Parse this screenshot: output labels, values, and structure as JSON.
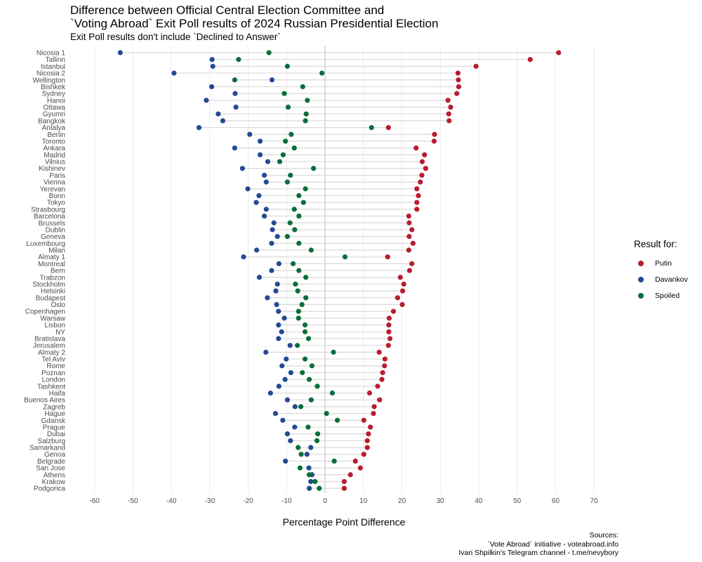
{
  "title_lines": [
    "Difference between Official Central Election Committee and",
    "`Voting Abroad` Exit Poll results of 2024 Russian Presidential Election"
  ],
  "subtitle": "Exit Poll results don't include `Declined to Answer`",
  "legend": {
    "title": "Result for:",
    "items": [
      {
        "name": "Putin",
        "color": "#b81d2e"
      },
      {
        "name": "Davankov",
        "color": "#244a94"
      },
      {
        "name": "Spoiled",
        "color": "#0b6e3a"
      }
    ]
  },
  "sources": [
    "Sources:",
    "`Vote Abroad` initiative - voteabroad.info",
    "Ivan Shpilkin's Telegram channel - t.me/nevybory"
  ],
  "chart_data": {
    "type": "scatter",
    "xlabel": "Percentage Point Difference",
    "xlim": [
      -60,
      70
    ],
    "xticks": [
      -60,
      -50,
      -40,
      -30,
      -20,
      -10,
      0,
      10,
      20,
      30,
      40,
      50,
      60,
      70
    ],
    "series_names": [
      "Putin",
      "Davankov",
      "Spoiled"
    ],
    "rows": [
      {
        "city": "Nicosia 1",
        "putin": 60.8,
        "davankov": -53.3,
        "spoiled": -14.6
      },
      {
        "city": "Tallinn",
        "putin": 53.4,
        "davankov": -29.4,
        "spoiled": -22.5
      },
      {
        "city": "Istanbul",
        "putin": 39.3,
        "davankov": -29.2,
        "spoiled": -9.8
      },
      {
        "city": "Nicosia 2",
        "putin": 34.6,
        "davankov": -39.3,
        "spoiled": -0.8
      },
      {
        "city": "Wellington",
        "putin": 34.7,
        "davankov": -13.8,
        "spoiled": -23.5
      },
      {
        "city": "Bishkek",
        "putin": 34.8,
        "davankov": -29.5,
        "spoiled": -5.8
      },
      {
        "city": "Sydney",
        "putin": 34.3,
        "davankov": -23.4,
        "spoiled": -10.6
      },
      {
        "city": "Hanoi",
        "putin": 32.0,
        "davankov": -30.9,
        "spoiled": -4.6
      },
      {
        "city": "Ottawa",
        "putin": 32.7,
        "davankov": -23.2,
        "spoiled": -9.6
      },
      {
        "city": "Gyumri",
        "putin": 32.2,
        "davankov": -27.8,
        "spoiled": -4.9
      },
      {
        "city": "Bangkok",
        "putin": 32.3,
        "davankov": -26.6,
        "spoiled": -5.1
      },
      {
        "city": "Antalya",
        "putin": 16.5,
        "davankov": -32.8,
        "spoiled": 12.1
      },
      {
        "city": "Berlin",
        "putin": 28.5,
        "davankov": -19.6,
        "spoiled": -8.8
      },
      {
        "city": "Toronto",
        "putin": 28.4,
        "davankov": -16.9,
        "spoiled": -10.3
      },
      {
        "city": "Ankara",
        "putin": 23.7,
        "davankov": -23.5,
        "spoiled": -8.0
      },
      {
        "city": "Madrid",
        "putin": 25.9,
        "davankov": -16.9,
        "spoiled": -10.9
      },
      {
        "city": "Vilnius",
        "putin": 25.3,
        "davankov": -14.9,
        "spoiled": -11.8
      },
      {
        "city": "Kishinev",
        "putin": 26.2,
        "davankov": -21.5,
        "spoiled": -3.0
      },
      {
        "city": "Paris",
        "putin": 25.2,
        "davankov": -15.8,
        "spoiled": -9.0
      },
      {
        "city": "Vienna",
        "putin": 24.8,
        "davankov": -15.3,
        "spoiled": -9.8
      },
      {
        "city": "Yerevan",
        "putin": 23.9,
        "davankov": -20.1,
        "spoiled": -5.1
      },
      {
        "city": "Bonn",
        "putin": 24.3,
        "davankov": -17.2,
        "spoiled": -6.8
      },
      {
        "city": "Tokyo",
        "putin": 23.9,
        "davankov": -17.9,
        "spoiled": -5.6
      },
      {
        "city": "Strasbourg",
        "putin": 23.9,
        "davankov": -15.3,
        "spoiled": -8.0
      },
      {
        "city": "Barcelona",
        "putin": 21.8,
        "davankov": -15.8,
        "spoiled": -6.8
      },
      {
        "city": "Brussels",
        "putin": 21.9,
        "davankov": -13.3,
        "spoiled": -9.1
      },
      {
        "city": "Dublin",
        "putin": 22.6,
        "davankov": -13.7,
        "spoiled": -7.9
      },
      {
        "city": "Geneva",
        "putin": 21.9,
        "davankov": -12.4,
        "spoiled": -9.8
      },
      {
        "city": "Luxembourg",
        "putin": 22.9,
        "davankov": -13.9,
        "spoiled": -6.8
      },
      {
        "city": "Milan",
        "putin": 21.8,
        "davankov": -17.8,
        "spoiled": -3.6
      },
      {
        "city": "Almaty 1",
        "putin": 16.3,
        "davankov": -21.2,
        "spoiled": 5.2
      },
      {
        "city": "Montreal",
        "putin": 22.6,
        "davankov": -12.0,
        "spoiled": -8.3
      },
      {
        "city": "Bern",
        "putin": 22.0,
        "davankov": -13.9,
        "spoiled": -6.8
      },
      {
        "city": "Trabzon",
        "putin": 19.6,
        "davankov": -17.1,
        "spoiled": -5.0
      },
      {
        "city": "Stockholm",
        "putin": 20.5,
        "davankov": -12.4,
        "spoiled": -7.7
      },
      {
        "city": "Helsinki",
        "putin": 20.2,
        "davankov": -12.8,
        "spoiled": -7.1
      },
      {
        "city": "Budapest",
        "putin": 18.9,
        "davankov": -15.0,
        "spoiled": -5.0
      },
      {
        "city": "Oslo",
        "putin": 20.1,
        "davankov": -12.6,
        "spoiled": -6.0
      },
      {
        "city": "Copenhagen",
        "putin": 17.8,
        "davankov": -12.1,
        "spoiled": -6.9
      },
      {
        "city": "Warsaw",
        "putin": 16.7,
        "davankov": -10.6,
        "spoiled": -6.9
      },
      {
        "city": "Lisbon",
        "putin": 16.6,
        "davankov": -12.1,
        "spoiled": -5.2
      },
      {
        "city": "NY",
        "putin": 16.6,
        "davankov": -11.3,
        "spoiled": -5.2
      },
      {
        "city": "Bratislava",
        "putin": 16.9,
        "davankov": -12.1,
        "spoiled": -4.3
      },
      {
        "city": "Jerusalem",
        "putin": 16.5,
        "davankov": -9.1,
        "spoiled": -7.2
      },
      {
        "city": "Almaty 2",
        "putin": 14.1,
        "davankov": -15.4,
        "spoiled": 2.2
      },
      {
        "city": "Tel Aviv",
        "putin": 15.6,
        "davankov": -10.1,
        "spoiled": -5.2
      },
      {
        "city": "Rome",
        "putin": 15.5,
        "davankov": -11.2,
        "spoiled": -3.4
      },
      {
        "city": "Poznan",
        "putin": 15.0,
        "davankov": -8.9,
        "spoiled": -5.9
      },
      {
        "city": "London",
        "putin": 14.8,
        "davankov": -10.4,
        "spoiled": -4.1
      },
      {
        "city": "Tashkent",
        "putin": 13.7,
        "davankov": -12.0,
        "spoiled": -2.0
      },
      {
        "city": "Haifa",
        "putin": 11.6,
        "davankov": -14.2,
        "spoiled": 1.9
      },
      {
        "city": "Buenos Aires",
        "putin": 14.2,
        "davankov": -9.8,
        "spoiled": -3.6
      },
      {
        "city": "Zagreb",
        "putin": 12.8,
        "davankov": -7.8,
        "spoiled": -6.3
      },
      {
        "city": "Hague",
        "putin": 12.6,
        "davankov": -12.9,
        "spoiled": 0.4
      },
      {
        "city": "Gdansk",
        "putin": 10.1,
        "davankov": -11.0,
        "spoiled": 3.2
      },
      {
        "city": "Prague",
        "putin": 11.8,
        "davankov": -7.9,
        "spoiled": -4.4
      },
      {
        "city": "Dubai",
        "putin": 11.3,
        "davankov": -9.8,
        "spoiled": -1.9
      },
      {
        "city": "Salzburg",
        "putin": 11.0,
        "davankov": -9.0,
        "spoiled": -2.1
      },
      {
        "city": "Samarkand",
        "putin": 11.0,
        "davankov": -3.7,
        "spoiled": -7.0
      },
      {
        "city": "Genoa",
        "putin": 10.1,
        "davankov": -4.7,
        "spoiled": -6.2
      },
      {
        "city": "Belgrade",
        "putin": 7.9,
        "davankov": -10.3,
        "spoiled": 2.4
      },
      {
        "city": "San Jose",
        "putin": 9.2,
        "davankov": -4.2,
        "spoiled": -6.5
      },
      {
        "city": "Athens",
        "putin": 6.6,
        "davankov": -3.4,
        "spoiled": -4.1
      },
      {
        "city": "Krakow",
        "putin": 5.0,
        "davankov": -3.7,
        "spoiled": -2.6
      },
      {
        "city": "Podgorica",
        "putin": 5.0,
        "davankov": -4.1,
        "spoiled": -1.5
      }
    ]
  }
}
